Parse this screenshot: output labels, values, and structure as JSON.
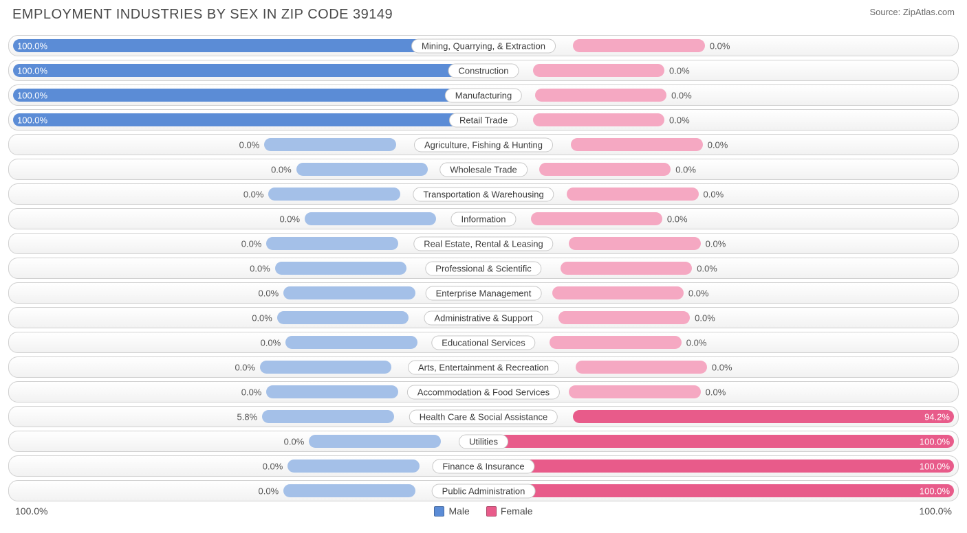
{
  "title": "EMPLOYMENT INDUSTRIES BY SEX IN ZIP CODE 39149",
  "source": "Source: ZipAtlas.com",
  "colors": {
    "male_full": "#5b8cd6",
    "male_partial": "#a4c0e8",
    "female_full": "#e85b8a",
    "female_partial": "#f5a8c2",
    "row_border": "#d0d0d0",
    "label_border": "#c8c8c8",
    "text": "#4a4a4a",
    "bg": "#ffffff"
  },
  "axis": {
    "left": "100.0%",
    "right": "100.0%"
  },
  "legend": [
    {
      "label": "Male",
      "color": "#5b8cd6"
    },
    {
      "label": "Female",
      "color": "#e85b8a"
    }
  ],
  "default_bar_pct": 28,
  "label_gap_pct": 3,
  "rows": [
    {
      "category": "Mining, Quarrying, & Extraction",
      "male": 100.0,
      "female": 0.0
    },
    {
      "category": "Construction",
      "male": 100.0,
      "female": 0.0
    },
    {
      "category": "Manufacturing",
      "male": 100.0,
      "female": 0.0
    },
    {
      "category": "Retail Trade",
      "male": 100.0,
      "female": 0.0
    },
    {
      "category": "Agriculture, Fishing & Hunting",
      "male": 0.0,
      "female": 0.0
    },
    {
      "category": "Wholesale Trade",
      "male": 0.0,
      "female": 0.0
    },
    {
      "category": "Transportation & Warehousing",
      "male": 0.0,
      "female": 0.0
    },
    {
      "category": "Information",
      "male": 0.0,
      "female": 0.0
    },
    {
      "category": "Real Estate, Rental & Leasing",
      "male": 0.0,
      "female": 0.0
    },
    {
      "category": "Professional & Scientific",
      "male": 0.0,
      "female": 0.0
    },
    {
      "category": "Enterprise Management",
      "male": 0.0,
      "female": 0.0
    },
    {
      "category": "Administrative & Support",
      "male": 0.0,
      "female": 0.0
    },
    {
      "category": "Educational Services",
      "male": 0.0,
      "female": 0.0
    },
    {
      "category": "Arts, Entertainment & Recreation",
      "male": 0.0,
      "female": 0.0
    },
    {
      "category": "Accommodation & Food Services",
      "male": 0.0,
      "female": 0.0
    },
    {
      "category": "Health Care & Social Assistance",
      "male": 5.8,
      "female": 94.2
    },
    {
      "category": "Utilities",
      "male": 0.0,
      "female": 100.0
    },
    {
      "category": "Finance & Insurance",
      "male": 0.0,
      "female": 100.0
    },
    {
      "category": "Public Administration",
      "male": 0.0,
      "female": 100.0
    }
  ]
}
